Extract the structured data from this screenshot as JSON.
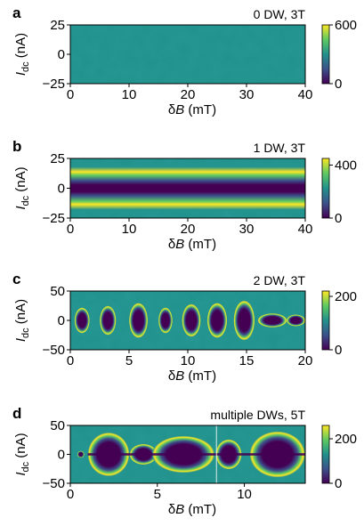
{
  "colormap": [
    "#440154",
    "#3b528b",
    "#21918c",
    "#5ec962",
    "#fde725"
  ],
  "chart_data": [
    {
      "type": "heatmap",
      "panel": "a",
      "title": "0 DW, 3T",
      "xlabel": "δB (mT)",
      "ylabel": "I_dc (nA)",
      "xlim": [
        0,
        40
      ],
      "ylim": [
        -25,
        25
      ],
      "xticks": [
        0,
        10,
        20,
        30,
        40
      ],
      "yticks": [
        25,
        0,
        -25
      ],
      "colorbar": {
        "range": [
          0,
          600
        ],
        "ticks": [
          600,
          0
        ]
      },
      "description_of_map": "uniform moderate background, no features",
      "features": []
    },
    {
      "type": "heatmap",
      "panel": "b",
      "title": "1 DW, 3T",
      "xlabel": "δB (mT)",
      "ylabel": "I_dc (nA)",
      "xlim": [
        0,
        40
      ],
      "ylim": [
        -25,
        25
      ],
      "xticks": [
        0,
        10,
        20,
        30,
        40
      ],
      "yticks": [
        25,
        0,
        -25
      ],
      "colorbar": {
        "range": [
          0,
          450
        ],
        "ticks": [
          400,
          0
        ]
      },
      "features": [
        {
          "kind": "band",
          "x_start": 0,
          "x_end": 40,
          "half_width_nA": 14
        }
      ]
    },
    {
      "type": "heatmap",
      "panel": "c",
      "title": "2 DW, 3T",
      "xlabel": "δB (mT)",
      "ylabel": "I_dc (nA)",
      "xlim": [
        0,
        20
      ],
      "ylim": [
        -50,
        50
      ],
      "xticks": [
        0,
        5,
        10,
        15,
        20
      ],
      "yticks": [
        50,
        0,
        -50
      ],
      "colorbar": {
        "range": [
          0,
          220
        ],
        "ticks": [
          200,
          0
        ]
      },
      "features": [
        {
          "kind": "lobe",
          "center": 1.0,
          "width": 1.3,
          "half_height_nA": 22
        },
        {
          "kind": "lobe",
          "center": 3.2,
          "width": 1.4,
          "half_height_nA": 25
        },
        {
          "kind": "lobe",
          "center": 5.8,
          "width": 1.6,
          "half_height_nA": 30
        },
        {
          "kind": "lobe",
          "center": 8.1,
          "width": 1.2,
          "half_height_nA": 22
        },
        {
          "kind": "lobe",
          "center": 10.3,
          "width": 1.6,
          "half_height_nA": 28
        },
        {
          "kind": "lobe",
          "center": 12.5,
          "width": 1.7,
          "half_height_nA": 30
        },
        {
          "kind": "lobe",
          "center": 14.8,
          "width": 1.8,
          "half_height_nA": 34
        },
        {
          "kind": "lobe",
          "center": 17.2,
          "width": 2.5,
          "half_height_nA": 12
        },
        {
          "kind": "lobe",
          "center": 19.2,
          "width": 1.6,
          "half_height_nA": 10
        }
      ]
    },
    {
      "type": "heatmap",
      "panel": "d",
      "title": "multiple DWs, 5T",
      "xlabel": "δB (mT)",
      "ylabel": "I_dc (nA)",
      "xlim": [
        0,
        13.5
      ],
      "ylim": [
        -50,
        50
      ],
      "xticks": [
        0,
        5,
        10
      ],
      "yticks": [
        50,
        0,
        -50
      ],
      "colorbar": {
        "range": [
          0,
          260
        ],
        "ticks": [
          200,
          0
        ]
      },
      "features": [
        {
          "kind": "lobe",
          "center": 0.6,
          "width": 0.4,
          "half_height_nA": 6
        },
        {
          "kind": "lobe",
          "center": 2.2,
          "width": 2.4,
          "half_height_nA": 38
        },
        {
          "kind": "lobe",
          "center": 4.2,
          "width": 1.6,
          "half_height_nA": 18
        },
        {
          "kind": "lobe",
          "center": 6.5,
          "width": 3.6,
          "half_height_nA": 32
        },
        {
          "kind": "lobe",
          "center": 9.1,
          "width": 1.5,
          "half_height_nA": 26
        },
        {
          "kind": "lobe",
          "center": 11.9,
          "width": 3.2,
          "half_height_nA": 40
        }
      ]
    }
  ]
}
